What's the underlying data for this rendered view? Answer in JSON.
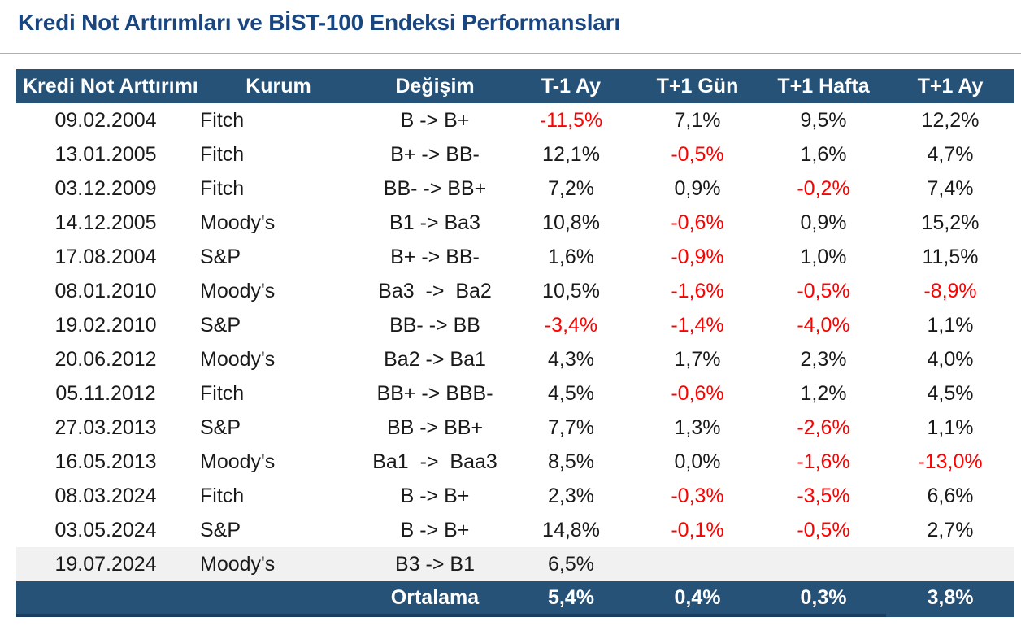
{
  "page_title": "Kredi Not Artırımları ve BİST-100 Endeksi Performansları",
  "colors": {
    "title_blue": "#1A4680",
    "header_navy": "#275278",
    "negative_red": "#FF0000",
    "shaded_row_gray": "#F1F1F1"
  },
  "chart_data": {
    "type": "table",
    "title": "Kredi Not Artırımları ve BİST-100 Endeksi Performansları",
    "columns": [
      "Kredi Not Arttırımı",
      "Kurum",
      "Değişim",
      "T-1 Ay",
      "T+1 Gün",
      "T+1 Hafta",
      "T+1 Ay"
    ],
    "rows": [
      [
        "09.02.2004",
        "Fitch",
        "B -> B+",
        "-11,5%",
        "7,1%",
        "9,5%",
        "12,2%"
      ],
      [
        "13.01.2005",
        "Fitch",
        "B+ -> BB-",
        "12,1%",
        "-0,5%",
        "1,6%",
        "4,7%"
      ],
      [
        "03.12.2009",
        "Fitch",
        "BB- -> BB+",
        "7,2%",
        "0,9%",
        "-0,2%",
        "7,4%"
      ],
      [
        "14.12.2005",
        "Moody's",
        "B1 -> Ba3",
        "10,8%",
        "-0,6%",
        "0,9%",
        "15,2%"
      ],
      [
        "17.08.2004",
        "S&P",
        "B+ -> BB-",
        "1,6%",
        "-0,9%",
        "1,0%",
        "11,5%"
      ],
      [
        "08.01.2010",
        "Moody's",
        "Ba3  ->  Ba2",
        "10,5%",
        "-1,6%",
        "-0,5%",
        "-8,9%"
      ],
      [
        "19.02.2010",
        "S&P",
        "BB- -> BB",
        "-3,4%",
        "-1,4%",
        "-4,0%",
        "1,1%"
      ],
      [
        "20.06.2012",
        "Moody's",
        "Ba2 -> Ba1",
        "4,3%",
        "1,7%",
        "2,3%",
        "4,0%"
      ],
      [
        "05.11.2012",
        "Fitch",
        "BB+ -> BBB-",
        "4,5%",
        "-0,6%",
        "1,2%",
        "4,5%"
      ],
      [
        "27.03.2013",
        "S&P",
        "BB -> BB+",
        "7,7%",
        "1,3%",
        "-2,6%",
        "1,1%"
      ],
      [
        "16.05.2013",
        "Moody's",
        "Ba1  ->  Baa3",
        "8,5%",
        "0,0%",
        "-1,6%",
        "-13,0%"
      ],
      [
        "08.03.2024",
        "Fitch",
        "B -> B+",
        "2,3%",
        "-0,3%",
        "-3,5%",
        "6,6%"
      ],
      [
        "03.05.2024",
        "S&P",
        "B -> B+",
        "14,8%",
        "-0,1%",
        "-0,5%",
        "2,7%"
      ],
      [
        "19.07.2024",
        "Moody's",
        "B3 -> B1",
        "6,5%",
        "",
        "",
        ""
      ]
    ],
    "footer": {
      "label": "Ortalama",
      "values": [
        "5,4%",
        "0,4%",
        "0,3%",
        "3,8%"
      ]
    },
    "layout_hints": {
      "negative_values_colored_red": true,
      "last_data_row_shaded": true
    }
  }
}
